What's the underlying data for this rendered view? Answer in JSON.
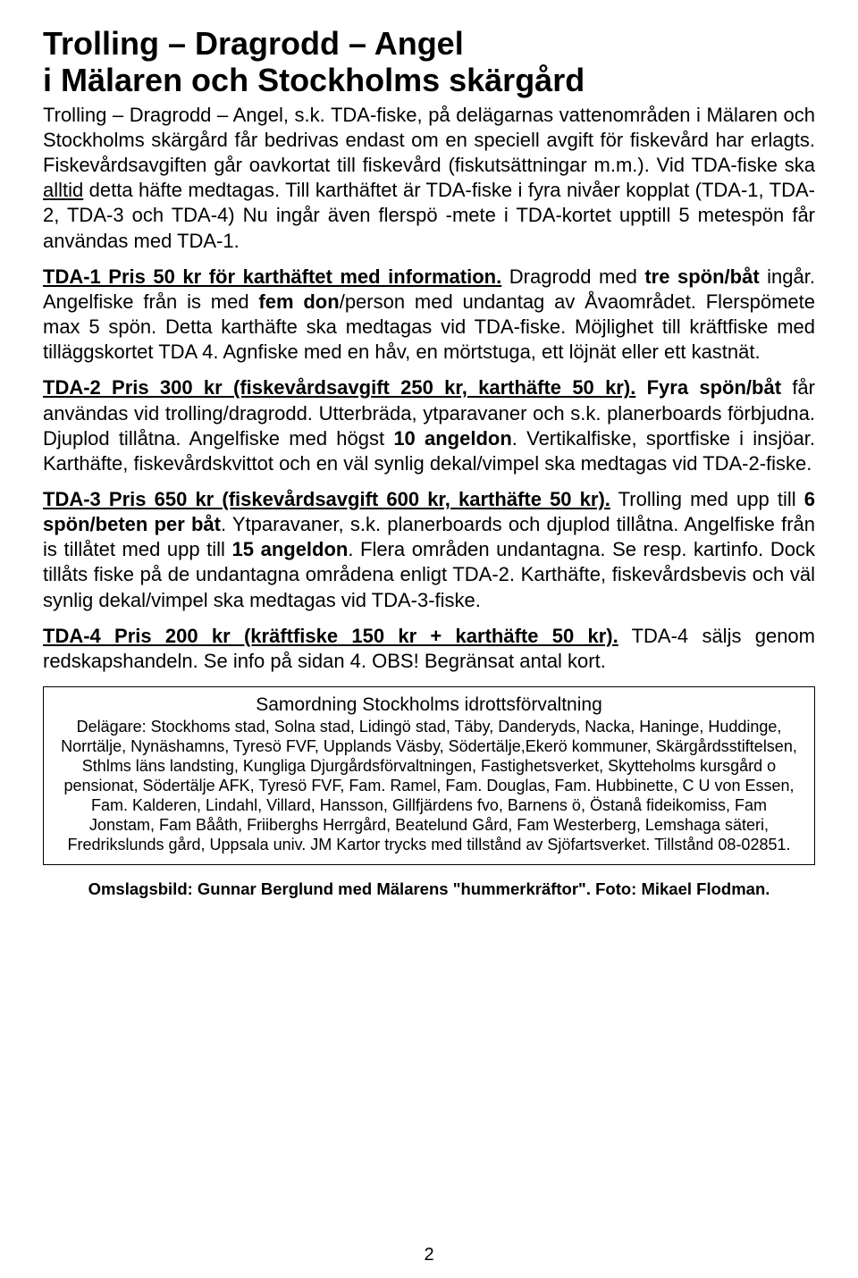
{
  "title_line1": "Trolling – Dragrodd – Angel",
  "title_line2": "i Mälaren och Stockholms skärgård",
  "intro_pre": "Trolling – Dragrodd – Angel, s.k. TDA-fiske, på delägarnas vattenområden i Mälaren och Stockholms skärgård får bedrivas endast om en speciell avgift för fiskevård har erlagts. Fiskevårdsavgiften går oavkortat till fiskevård (fiskutsättningar m.m.). Vid TDA-fiske ska ",
  "intro_underlined": "alltid",
  "intro_post": " detta häfte medtagas. Till karthäftet är TDA-fiske i fyra nivåer kopplat (TDA-1, TDA-2, TDA-3 och TDA-4) Nu ingår även flerspö -mete i TDA-kortet upptill 5 metespön får användas med TDA-1.",
  "tda1": {
    "head": "TDA-1    Pris 50 kr för karthäftet med information.",
    "seg1": " Dragrodd med ",
    "b1": "tre spön/båt",
    "seg2": " ingår. Angelfiske från is med ",
    "b2": "fem don",
    "seg3": "/person med undantag av Åvaområdet. Flerspömete max 5 spön. Detta karthäfte ska medtagas vid TDA-fiske. Möjlighet till kräftfiske med tilläggskortet TDA 4. Agnfiske med en håv, en mörtstuga, ett löjnät eller ett kastnät."
  },
  "tda2": {
    "head": "TDA-2    Pris 300 kr (fiskevårdsavgift 250 kr, karthäfte 50 kr).",
    "seg1": " ",
    "b1": "Fyra spön/båt",
    "seg2": " får användas vid trolling/dragrodd. Utterbräda, ytparavaner och s.k. planerboards förbjudna. Djuplod tillåtna. Angelfiske med högst ",
    "b2": "10 angeldon",
    "seg3": ". Vertikalfiske, sportfiske i insjöar. Karthäfte, fiskevårdskvittot och en väl synlig dekal/vimpel ska medtagas vid TDA-2-fiske."
  },
  "tda3": {
    "head": "TDA-3    Pris 650 kr (fiskevårdsavgift 600 kr, karthäfte 50 kr).",
    "seg1": " Trolling med upp till ",
    "b1": "6 spön/beten per båt",
    "seg2": ". Ytparavaner, s.k. planerboards och djuplod tillåtna. Angelfiske från is tillåtet med upp till ",
    "b2": "15 angeldon",
    "seg3": ". Flera områden undantagna. Se resp. kartinfo. Dock tillåts fiske på de undantagna områdena enligt TDA-2. Karthäfte, fiskevårdsbevis och väl synlig dekal/vimpel ska medtagas vid TDA-3-fiske."
  },
  "tda4": {
    "head": "TDA-4    Pris 200 kr (kräftfiske 150 kr + karthäfte 50 kr).",
    "seg1": " TDA-4 säljs genom redskapshandeln. Se info på sidan 4. OBS! Begränsat antal kort."
  },
  "box_title": "Samordning Stockholms idrottsförvaltning",
  "box_body": "Delägare: Stockhoms stad, Solna stad, Lidingö stad, Täby, Danderyds, Nacka, Haninge, Huddinge, Norrtälje, Nynäshamns, Tyresö FVF, Upplands Väsby, Södertälje,Ekerö kommuner, Skärgårdsstiftelsen, Sthlms läns landsting, Kungliga Djurgårdsförvaltningen, Fastighetsverket, Skytteholms kursgård o pensionat, Södertälje AFK, Tyresö FVF, Fam. Ramel, Fam. Douglas, Fam. Hubbinette, C U von Essen, Fam. Kalderen, Lindahl, Villard, Hansson, Gillfjärdens fvo, Barnens ö, Östanå fideikomiss, Fam Jonstam, Fam Bååth, Friiberghs Herrgård, Beatelund Gård, Fam Westerberg, Lemshaga säteri, Fredrikslunds gård, Uppsala univ. JM Kartor trycks med tillstånd av Sjöfartsverket. Tillstånd 08-02851.",
  "caption": "Omslagsbild: Gunnar Berglund med Mälarens \"hummerkräftor\". Foto: Mikael Flodman.",
  "page_number": "2"
}
